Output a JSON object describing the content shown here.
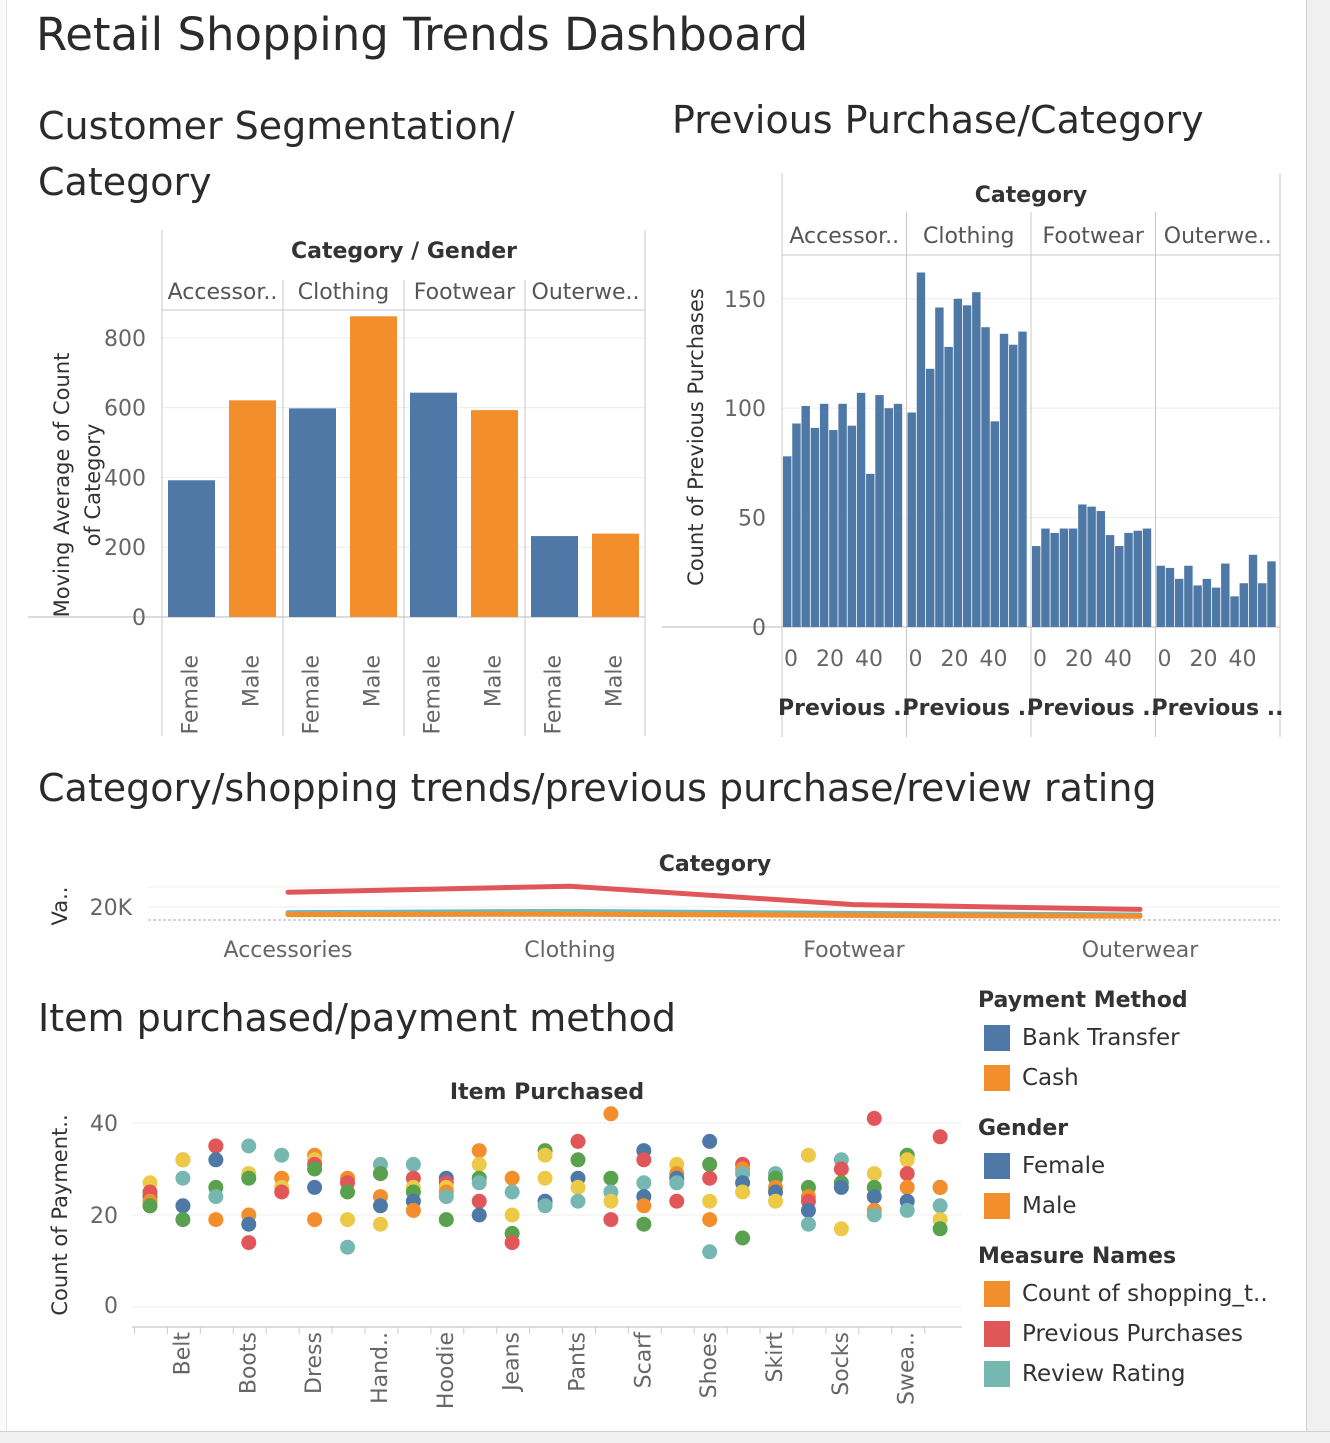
{
  "dashboard_title": "Retail Shopping Trends Dashboard",
  "colors": {
    "blue": "#4e79a7",
    "orange": "#f28e2b",
    "red": "#e15759",
    "teal": "#76b7b2",
    "green": "#59a14f",
    "yellow": "#edc948"
  },
  "sections": {
    "segmentation": "Customer Segmentation/ Category",
    "previous": "Previous Purchase/Category",
    "trends": "Category/shopping trends/previous purchase/review rating",
    "items": "Item purchased/payment method"
  },
  "legends": [
    {
      "title": "Payment Method",
      "items": [
        {
          "label": "Bank Transfer",
          "color": "#4e79a7"
        },
        {
          "label": "Cash",
          "color": "#f28e2b"
        }
      ]
    },
    {
      "title": "Gender",
      "items": [
        {
          "label": "Female",
          "color": "#4e79a7"
        },
        {
          "label": "Male",
          "color": "#f28e2b"
        }
      ]
    },
    {
      "title": "Measure Names",
      "items": [
        {
          "label": "Count of shopping_t..",
          "color": "#f28e2b"
        },
        {
          "label": "Previous Purchases",
          "color": "#e15759"
        },
        {
          "label": "Review Rating",
          "color": "#76b7b2"
        }
      ]
    }
  ],
  "chart_data": [
    {
      "type": "bar",
      "title": "Customer Segmentation/ Category",
      "header": "Category / Gender",
      "panels": [
        "Accessor..",
        "Clothing",
        "Footwear",
        "Outerwe.."
      ],
      "categories": [
        "Female",
        "Male"
      ],
      "ylabel": "Moving Average of Count of Category",
      "y_ticks": [
        "0",
        "200",
        "400",
        "600",
        "800"
      ],
      "ylim": [
        0,
        880
      ],
      "values": [
        [
          392,
          621
        ],
        [
          598,
          862
        ],
        [
          643,
          593
        ],
        [
          232,
          239
        ]
      ]
    },
    {
      "type": "bar",
      "title": "Previous Purchase/Category",
      "header": "Category",
      "panels": [
        "Accessor..",
        "Clothing",
        "Footwear",
        "Outerwe.."
      ],
      "ylabel": "Count of Previous Purchases",
      "xlabel": "Previous ..",
      "x_ticks": [
        "0",
        "20",
        "40"
      ],
      "y_ticks": [
        "0",
        "50",
        "100",
        "150"
      ],
      "ylim": [
        0,
        170
      ],
      "series": [
        [
          78,
          93,
          101,
          91,
          102,
          90,
          102,
          92,
          107,
          70,
          106,
          100,
          102
        ],
        [
          98,
          162,
          118,
          146,
          128,
          150,
          147,
          153,
          137,
          94,
          134,
          129,
          135
        ],
        [
          37,
          45,
          43,
          45,
          45,
          56,
          55,
          53,
          42,
          37,
          43,
          44,
          45
        ],
        [
          28,
          27,
          22,
          28,
          19,
          22,
          18,
          29,
          14,
          20,
          33,
          20,
          30
        ]
      ]
    },
    {
      "type": "line",
      "title": "Category/shopping trends/previous purchase/review rating",
      "header": "Category",
      "ylabel": "Va..",
      "y_tick": "20K",
      "categories": [
        "Accessories",
        "Clothing",
        "Footwear",
        "Outerwear"
      ],
      "series": [
        {
          "name": "Previous Purchases",
          "color": "#e15759",
          "values": [
            23700,
            25200,
            20600,
            19400
          ]
        },
        {
          "name": "Review Rating",
          "color": "#76b7b2",
          "values": [
            18600,
            18900,
            18400,
            18000
          ]
        },
        {
          "name": "Count of shopping_t..",
          "color": "#f28e2b",
          "values": [
            18100,
            18200,
            17900,
            17700
          ]
        }
      ]
    },
    {
      "type": "scatter",
      "title": "Item purchased/payment method",
      "header": "Item Purchased",
      "ylabel": "Count of Payment..",
      "y_ticks": [
        "0",
        "20",
        "40"
      ],
      "ylim": [
        0,
        45
      ],
      "categories": [
        "Belt",
        "Boots",
        "Dress",
        "Hand..",
        "Hoodie",
        "Jeans",
        "Pants",
        "Scarf",
        "Shoes",
        "Skirt",
        "Socks",
        "Swea.."
      ],
      "points": [
        [
          0,
          24,
          "blue"
        ],
        [
          0,
          22,
          "teal"
        ],
        [
          0,
          27,
          "yellow"
        ],
        [
          0,
          25,
          "red"
        ],
        [
          0,
          23,
          "orange"
        ],
        [
          0,
          22,
          "green"
        ],
        [
          1,
          32,
          "red"
        ],
        [
          1,
          32,
          "yellow"
        ],
        [
          1,
          28,
          "teal"
        ],
        [
          1,
          22,
          "blue"
        ],
        [
          1,
          19,
          "green"
        ],
        [
          2,
          35,
          "orange"
        ],
        [
          2,
          35,
          "red"
        ],
        [
          2,
          32,
          "blue"
        ],
        [
          2,
          26,
          "green"
        ],
        [
          2,
          24,
          "teal"
        ],
        [
          2,
          19,
          "orange"
        ],
        [
          3,
          35,
          "teal"
        ],
        [
          3,
          29,
          "yellow"
        ],
        [
          3,
          28,
          "green"
        ],
        [
          3,
          20,
          "orange"
        ],
        [
          3,
          18,
          "blue"
        ],
        [
          3,
          14,
          "red"
        ],
        [
          4,
          33,
          "teal"
        ],
        [
          4,
          28,
          "orange"
        ],
        [
          4,
          26,
          "yellow"
        ],
        [
          4,
          25,
          "red"
        ],
        [
          5,
          33,
          "orange"
        ],
        [
          5,
          32,
          "yellow"
        ],
        [
          5,
          31,
          "red"
        ],
        [
          5,
          30,
          "green"
        ],
        [
          5,
          26,
          "blue"
        ],
        [
          5,
          19,
          "orange"
        ],
        [
          6,
          28,
          "orange"
        ],
        [
          6,
          27,
          "red"
        ],
        [
          6,
          25,
          "green"
        ],
        [
          6,
          19,
          "yellow"
        ],
        [
          6,
          13,
          "teal"
        ],
        [
          7,
          31,
          "teal"
        ],
        [
          7,
          29,
          "red"
        ],
        [
          7,
          29,
          "green"
        ],
        [
          7,
          24,
          "orange"
        ],
        [
          7,
          22,
          "blue"
        ],
        [
          7,
          18,
          "yellow"
        ],
        [
          8,
          31,
          "teal"
        ],
        [
          8,
          28,
          "red"
        ],
        [
          8,
          26,
          "yellow"
        ],
        [
          8,
          25,
          "green"
        ],
        [
          8,
          23,
          "blue"
        ],
        [
          8,
          21,
          "orange"
        ],
        [
          9,
          28,
          "blue"
        ],
        [
          9,
          27,
          "red"
        ],
        [
          9,
          26,
          "yellow"
        ],
        [
          9,
          25,
          "orange"
        ],
        [
          9,
          24,
          "teal"
        ],
        [
          9,
          19,
          "green"
        ],
        [
          10,
          34,
          "orange"
        ],
        [
          10,
          31,
          "yellow"
        ],
        [
          10,
          28,
          "green"
        ],
        [
          10,
          27,
          "teal"
        ],
        [
          10,
          23,
          "red"
        ],
        [
          10,
          20,
          "blue"
        ],
        [
          11,
          28,
          "orange"
        ],
        [
          11,
          25,
          "teal"
        ],
        [
          11,
          20,
          "yellow"
        ],
        [
          11,
          16,
          "green"
        ],
        [
          11,
          14,
          "red"
        ],
        [
          12,
          34,
          "green"
        ],
        [
          12,
          33,
          "yellow"
        ],
        [
          12,
          28,
          "yellow"
        ],
        [
          12,
          23,
          "blue"
        ],
        [
          12,
          22,
          "teal"
        ],
        [
          13,
          36,
          "red"
        ],
        [
          13,
          32,
          "green"
        ],
        [
          13,
          28,
          "blue"
        ],
        [
          13,
          26,
          "yellow"
        ],
        [
          13,
          23,
          "teal"
        ],
        [
          14,
          42,
          "orange"
        ],
        [
          14,
          28,
          "green"
        ],
        [
          14,
          25,
          "teal"
        ],
        [
          14,
          23,
          "yellow"
        ],
        [
          14,
          19,
          "red"
        ],
        [
          15,
          34,
          "blue"
        ],
        [
          15,
          32,
          "red"
        ],
        [
          15,
          27,
          "teal"
        ],
        [
          15,
          24,
          "blue"
        ],
        [
          15,
          22,
          "orange"
        ],
        [
          15,
          18,
          "green"
        ],
        [
          16,
          31,
          "yellow"
        ],
        [
          16,
          29,
          "orange"
        ],
        [
          16,
          28,
          "blue"
        ],
        [
          16,
          27,
          "teal"
        ],
        [
          16,
          23,
          "red"
        ],
        [
          17,
          36,
          "blue"
        ],
        [
          17,
          31,
          "green"
        ],
        [
          17,
          28,
          "red"
        ],
        [
          17,
          23,
          "yellow"
        ],
        [
          17,
          19,
          "orange"
        ],
        [
          17,
          12,
          "teal"
        ],
        [
          18,
          31,
          "red"
        ],
        [
          18,
          30,
          "orange"
        ],
        [
          18,
          29,
          "teal"
        ],
        [
          18,
          27,
          "blue"
        ],
        [
          18,
          25,
          "yellow"
        ],
        [
          18,
          15,
          "green"
        ],
        [
          19,
          29,
          "teal"
        ],
        [
          19,
          28,
          "green"
        ],
        [
          19,
          26,
          "orange"
        ],
        [
          19,
          25,
          "blue"
        ],
        [
          19,
          23,
          "yellow"
        ],
        [
          20,
          33,
          "yellow"
        ],
        [
          20,
          26,
          "green"
        ],
        [
          20,
          24,
          "orange"
        ],
        [
          20,
          23,
          "red"
        ],
        [
          20,
          21,
          "blue"
        ],
        [
          20,
          18,
          "teal"
        ],
        [
          21,
          32,
          "teal"
        ],
        [
          21,
          30,
          "red"
        ],
        [
          21,
          27,
          "green"
        ],
        [
          21,
          26,
          "blue"
        ],
        [
          21,
          17,
          "yellow"
        ],
        [
          22,
          41,
          "red"
        ],
        [
          22,
          29,
          "yellow"
        ],
        [
          22,
          26,
          "green"
        ],
        [
          22,
          24,
          "blue"
        ],
        [
          22,
          21,
          "orange"
        ],
        [
          22,
          20,
          "teal"
        ],
        [
          23,
          33,
          "green"
        ],
        [
          23,
          32,
          "yellow"
        ],
        [
          23,
          29,
          "red"
        ],
        [
          23,
          26,
          "orange"
        ],
        [
          23,
          23,
          "blue"
        ],
        [
          23,
          21,
          "teal"
        ],
        [
          24,
          37,
          "red"
        ],
        [
          24,
          26,
          "blue"
        ],
        [
          24,
          26,
          "orange"
        ],
        [
          24,
          22,
          "teal"
        ],
        [
          24,
          19,
          "yellow"
        ],
        [
          24,
          17,
          "green"
        ]
      ]
    }
  ]
}
